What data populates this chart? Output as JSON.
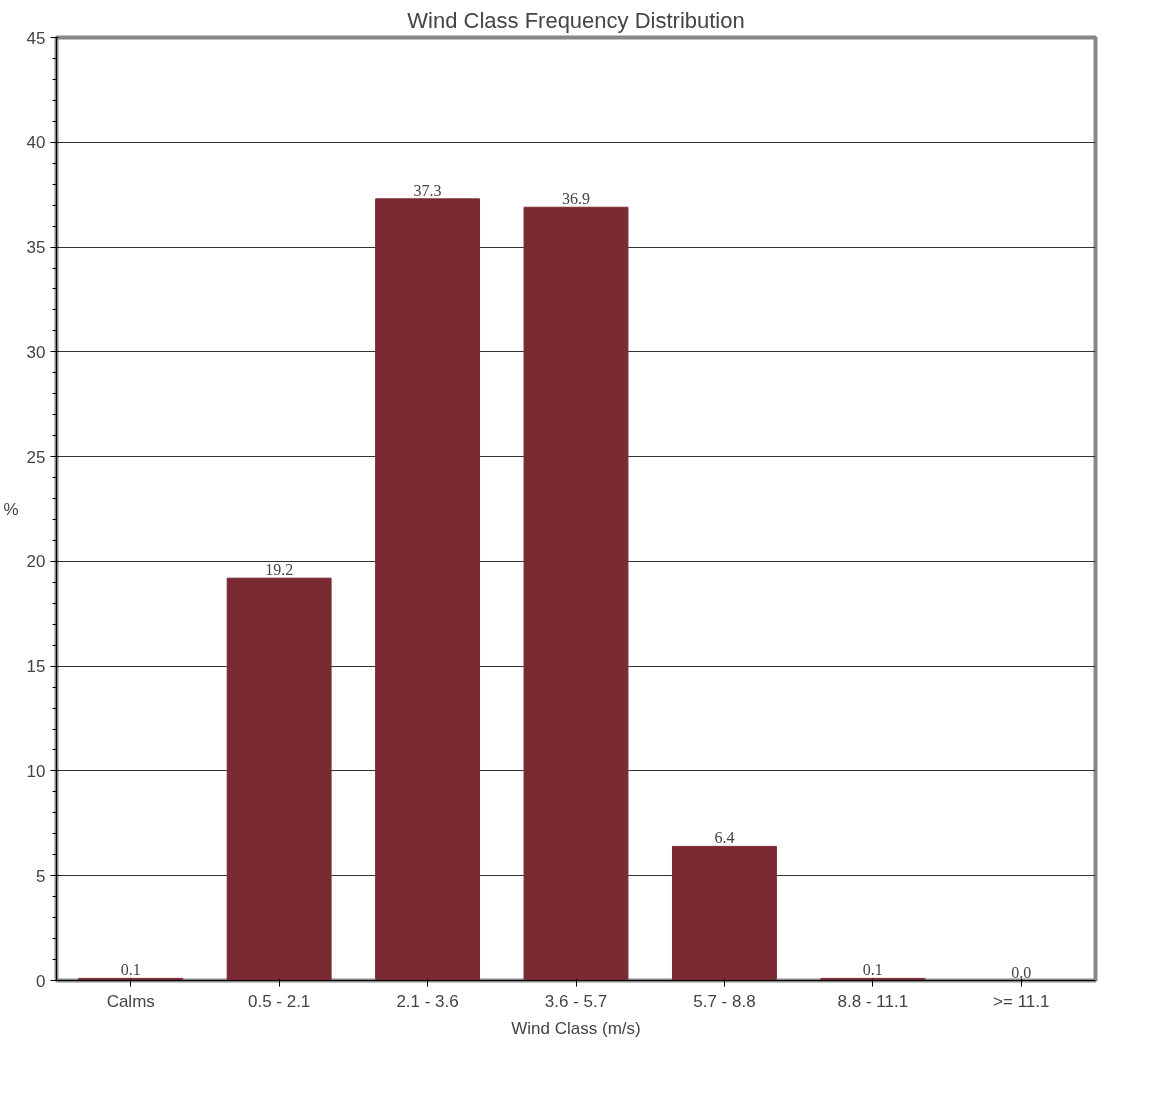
{
  "chart_data": {
    "type": "bar",
    "title": "Wind Class Frequency Distribution",
    "xlabel": "Wind Class (m/s)",
    "ylabel": "%",
    "categories": [
      "Calms",
      "0.5 - 2.1",
      "2.1 - 3.6",
      "3.6 - 5.7",
      "5.7 - 8.8",
      "8.8 - 11.1",
      ">= 11.1"
    ],
    "values": [
      0.1,
      19.2,
      37.3,
      36.9,
      6.4,
      0.1,
      0.0
    ],
    "value_labels": [
      "0.1",
      "19.2",
      "37.3",
      "36.9",
      "6.4",
      "0.1",
      "0.0"
    ],
    "color": "#7a2a32",
    "ylim": [
      0,
      45
    ],
    "yticks": [
      0,
      5,
      10,
      15,
      20,
      25,
      30,
      35,
      40,
      45
    ],
    "grid": "y"
  }
}
